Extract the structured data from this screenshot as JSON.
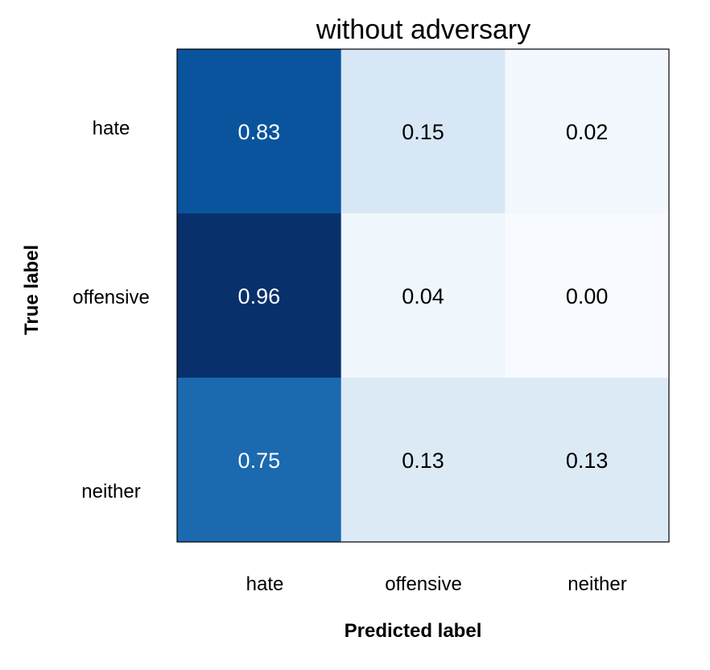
{
  "chart_data": {
    "type": "heatmap",
    "title": "without adversary",
    "xlabel": "Predicted label",
    "ylabel": "True label",
    "x_categories": [
      "hate",
      "offensive",
      "neither"
    ],
    "y_categories": [
      "hate",
      "offensive",
      "neither"
    ],
    "cells": [
      [
        {
          "value": 0.83,
          "label": "0.83"
        },
        {
          "value": 0.15,
          "label": "0.15"
        },
        {
          "value": 0.02,
          "label": "0.02"
        }
      ],
      [
        {
          "value": 0.96,
          "label": "0.96"
        },
        {
          "value": 0.04,
          "label": "0.04"
        },
        {
          "value": 0.0,
          "label": "0.00"
        }
      ],
      [
        {
          "value": 0.75,
          "label": "0.75"
        },
        {
          "value": 0.13,
          "label": "0.13"
        },
        {
          "value": 0.13,
          "label": "0.13"
        }
      ]
    ],
    "colormap": "Blues",
    "value_range": [
      0,
      0.96
    ],
    "grid": false,
    "legend": "none"
  }
}
